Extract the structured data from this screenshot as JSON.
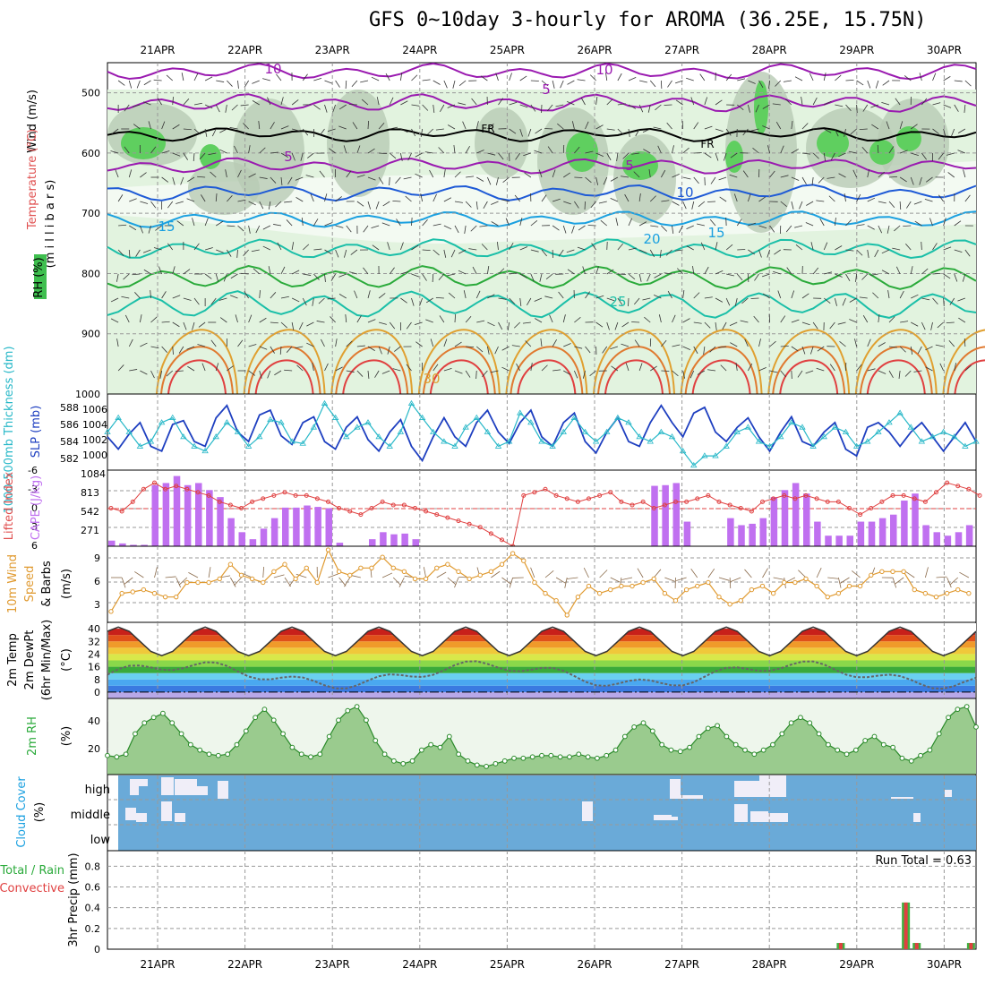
{
  "title": "GFS 0~10day 3-hourly for AROMA (36.25E, 15.75N)",
  "dates": [
    "21APR",
    "22APR",
    "23APR",
    "24APR",
    "25APR",
    "26APR",
    "27APR",
    "28APR",
    "29APR",
    "30APR"
  ],
  "colors": {
    "temp_labels": "#e05050",
    "purple": "#9a1ab0",
    "blue_dark": "#1e5ad6",
    "blue": "#1aa0e0",
    "teal": "#1abfa8",
    "green": "#2aaa3a",
    "orange": "#e0a030",
    "red": "#e04040",
    "slp": "#1e3fc0",
    "thick": "#28b8c8",
    "cape": "#c070f0",
    "wind": "#e09a30",
    "rh": "#4aa84a",
    "cloud": "#6aaad8"
  },
  "panels": {
    "upper": {
      "axis_label_wind": "Wind (m/s)",
      "axis_label_temp": "Temperature (°C)",
      "axis_label_rh": "RH (%)",
      "axis_label_pressure": "(m i l l i b a r s)",
      "yticks": [
        "500",
        "600",
        "700",
        "800",
        "900",
        "1000"
      ],
      "contour_labels": [
        {
          "text": "10",
          "color": "purple"
        },
        {
          "text": "5",
          "color": "purple"
        },
        {
          "text": "10",
          "color": "purple"
        },
        {
          "text": "5",
          "color": "purple"
        },
        {
          "text": "5",
          "color": "purple"
        },
        {
          "text": "10",
          "color": "blue_dark"
        },
        {
          "text": "15",
          "color": "blue"
        },
        {
          "text": "20",
          "color": "blue"
        },
        {
          "text": "15",
          "color": "blue"
        },
        {
          "text": "25",
          "color": "teal"
        },
        {
          "text": "30",
          "color": "orange"
        },
        {
          "text": "FR",
          "color": "black"
        },
        {
          "text": "FR",
          "color": "black"
        }
      ]
    },
    "slp": {
      "label_thick": "1000-500mb Thickness (dm)",
      "label_slp": "SLP (mb)",
      "yticks_left": [
        "588",
        "586",
        "584",
        "582"
      ],
      "yticks_right": [
        "1006",
        "1004",
        "1002",
        "1000"
      ]
    },
    "cape": {
      "label_li": "Lifted Index",
      "label_cape": "CAPE (J/kg)",
      "yticks_left": [
        "-6",
        "-3",
        "0",
        "3",
        "6"
      ],
      "yticks_right": [
        "1084",
        "813",
        "542",
        "271"
      ]
    },
    "wind10": {
      "label_a": "10m Wind",
      "label_b": "Speed",
      "label_c": "& Barbs",
      "label_unit": "(m/s)",
      "yticks": [
        "9",
        "6",
        "3"
      ]
    },
    "temp2m": {
      "label_a": "2m Temp",
      "label_b": "2m DewPt",
      "label_c": "(6hr Min/Max)",
      "label_unit": "(°C)",
      "yticks": [
        "40",
        "32",
        "24",
        "16",
        "8",
        "0"
      ]
    },
    "rh2m": {
      "label_a": "2m RH",
      "label_unit": "(%)",
      "yticks": [
        "40",
        "20"
      ]
    },
    "cloud": {
      "label_a": "Cloud Cover",
      "label_unit": "(%)",
      "levels": [
        "high",
        "middle",
        "low"
      ]
    },
    "precip": {
      "label_a": "Total / Rain",
      "label_b": "Convective",
      "label_c": "3hr Precip (mm)",
      "run_total": "Run Total = 0.63",
      "yticks": [
        "0.8",
        "0.6",
        "0.4",
        "0.2",
        "0"
      ]
    }
  },
  "chart_data": [
    {
      "panel": "slp",
      "type": "line",
      "series": [
        {
          "values": [
            1002.5,
            1001.2,
            1002.8,
            1004.0,
            1001.5,
            1001.0,
            1003.8,
            1004.2,
            1002.0,
            1001.5,
            1004.5,
            1005.8,
            1003.0,
            1002.0,
            1004.8,
            1005.3,
            1002.6,
            1001.7,
            1004.0,
            1004.6,
            1002.0,
            1001.2,
            1003.5,
            1004.6,
            1002.2,
            1001.0,
            1003.0,
            1004.3,
            1001.5,
            1000.0,
            1002.5,
            1004.5,
            1002.5,
            1001.5,
            1004.0,
            1005.3,
            1003.0,
            1001.8,
            1004.0,
            1005.3,
            1002.5,
            1001.5,
            1004.0,
            1005.0,
            1002.0,
            1000.8,
            1003.0,
            1004.5,
            1002.0,
            1001.5,
            1004.0,
            1005.8,
            1004.0,
            1002.5,
            1005.0,
            1005.6,
            1003.0,
            1002.0,
            1003.5,
            1004.5,
            1002.5,
            1001.0,
            1003.0,
            1004.6,
            1002.0,
            1001.5,
            1003.0,
            1004.0,
            1001.2,
            1000.5,
            1003.5,
            1004.0,
            1003.0,
            1001.5,
            1003.0,
            1004.0,
            1002.5,
            1001.0,
            1002.5,
            1004.0,
            1002.0
          ]
        },
        {
          "values": [
            1003.0,
            1004.5,
            1003.0,
            1001.5,
            1002.0,
            1004.0,
            1004.5,
            1002.5,
            1001.5,
            1001.0,
            1002.5,
            1004.0,
            1003.0,
            1001.5,
            1002.5,
            1004.3,
            1004.0,
            1002.0,
            1001.8,
            1003.5,
            1006.0,
            1004.5,
            1002.5,
            1003.5,
            1004.0,
            1002.5,
            1001.5,
            1003.0,
            1006.0,
            1004.5,
            1003.0,
            1002.0,
            1001.5,
            1003.5,
            1004.5,
            1003.0,
            1001.5,
            1002.0,
            1005.0,
            1004.0,
            1002.0,
            1001.5,
            1003.0,
            1004.5,
            1003.0,
            1002.0,
            1003.0,
            1004.5,
            1004.0,
            1002.5,
            1002.0,
            1003.0,
            1002.5,
            1001.0,
            999.5,
            1000.5,
            1000.5,
            1001.5,
            1003.0,
            1003.5,
            1002.0,
            1001.5,
            1002.5,
            1004.0,
            1003.5,
            1001.5,
            1002.5,
            1003.5,
            1003.0,
            1001.5,
            1002.0,
            1003.0,
            1004.0,
            1005.0,
            1003.5,
            1002.0,
            1002.5,
            1003.0,
            1002.5,
            1001.5,
            1002.0
          ]
        }
      ]
    },
    {
      "panel": "cape",
      "type": "bar",
      "categories_count": 80,
      "values": [
        80,
        40,
        20,
        20,
        870,
        900,
        1000,
        870,
        900,
        800,
        700,
        400,
        200,
        100,
        250,
        400,
        550,
        550,
        580,
        560,
        540,
        50,
        0,
        0,
        100,
        200,
        170,
        180,
        100,
        0,
        0,
        0,
        0,
        0,
        0,
        0,
        0,
        0,
        0,
        0,
        0,
        0,
        0,
        0,
        0,
        0,
        0,
        0,
        0,
        0,
        860,
        870,
        900,
        350,
        0,
        0,
        0,
        400,
        300,
        320,
        400,
        700,
        800,
        900,
        750,
        350,
        150,
        150,
        150,
        350,
        350,
        400,
        450,
        650,
        750,
        300,
        200,
        150,
        200,
        300
      ]
    },
    {
      "panel": "cape",
      "type": "line",
      "name": "Lifted Index",
      "values": [
        0,
        0.5,
        -1,
        -3,
        -4,
        -3,
        -3.5,
        -3,
        -2.5,
        -2,
        -1,
        -0.5,
        0,
        -1,
        -1.5,
        -2,
        -2.5,
        -2,
        -2,
        -1.5,
        -1,
        0,
        0.5,
        1,
        0,
        -1,
        -0.5,
        -0.5,
        0,
        0.5,
        1,
        1.5,
        2,
        2.5,
        3,
        4,
        5,
        6,
        -2,
        -2.5,
        -3,
        -2,
        -1.5,
        -1,
        -1.5,
        -2,
        -2.5,
        -1,
        -0.5,
        -1,
        0,
        -0.5,
        -1,
        -1,
        -1.5,
        -2,
        -1,
        -0.5,
        0,
        0.5,
        -1,
        -1.5,
        -2,
        -1.5,
        -2,
        -1.5,
        -1,
        -1,
        0,
        1,
        0,
        -1,
        -2,
        -2,
        -1.5,
        -1,
        -2.5,
        -4,
        -3.5,
        -3,
        -2
      ]
    },
    {
      "panel": "wind10",
      "type": "line",
      "name": "10m Wind Speed",
      "values": [
        1.5,
        4,
        4.2,
        4.5,
        4,
        3.5,
        3.5,
        5.5,
        5.5,
        5.5,
        6,
        8,
        6.5,
        6,
        5.5,
        7,
        8,
        6,
        7.5,
        5.5,
        10,
        7,
        6.5,
        7.5,
        7.5,
        9,
        7.5,
        7,
        6,
        6,
        7.5,
        8,
        7,
        6,
        6.5,
        7,
        8,
        9.5,
        8.5,
        5.5,
        4,
        3,
        1,
        3.5,
        5,
        4,
        4.5,
        5,
        5,
        5.5,
        6,
        4,
        3,
        4.5,
        5,
        5.5,
        3.5,
        2.5,
        3,
        4.5,
        5,
        4,
        5.5,
        5.5,
        6,
        5,
        3.5,
        4,
        5,
        5,
        6.5,
        7,
        7,
        7,
        4.5,
        4,
        3.5,
        4,
        4.5,
        4
      ]
    },
    {
      "panel": "rh2m",
      "type": "line",
      "name": "2m RH",
      "values": [
        14,
        13,
        15,
        30,
        38,
        42,
        45,
        38,
        30,
        22,
        18,
        15,
        14,
        15,
        22,
        32,
        42,
        48,
        40,
        30,
        20,
        15,
        13,
        15,
        28,
        40,
        47,
        50,
        40,
        25,
        15,
        10,
        8,
        10,
        18,
        22,
        20,
        28,
        15,
        10,
        7,
        6,
        8,
        10,
        12,
        12,
        13,
        14,
        14,
        13,
        13,
        15,
        13,
        12,
        14,
        18,
        28,
        35,
        38,
        32,
        22,
        18,
        17,
        20,
        28,
        34,
        36,
        28,
        22,
        18,
        15,
        18,
        22,
        30,
        38,
        42,
        38,
        30,
        22,
        18,
        15,
        18,
        25,
        28,
        22,
        20,
        12,
        10,
        14,
        18,
        30,
        42,
        48,
        50,
        35
      ]
    },
    {
      "panel": "precip",
      "type": "bar",
      "name": "3hr Precip",
      "categories_count": 80,
      "values": [
        0,
        0,
        0,
        0,
        0,
        0,
        0,
        0,
        0,
        0,
        0,
        0,
        0,
        0,
        0,
        0,
        0,
        0,
        0,
        0,
        0,
        0,
        0,
        0,
        0,
        0,
        0,
        0,
        0,
        0,
        0,
        0,
        0,
        0,
        0,
        0,
        0,
        0,
        0,
        0,
        0,
        0,
        0,
        0,
        0,
        0,
        0,
        0,
        0,
        0,
        0,
        0,
        0,
        0,
        0,
        0,
        0,
        0,
        0,
        0,
        0,
        0,
        0,
        0,
        0,
        0,
        0,
        0.06,
        0,
        0,
        0,
        0,
        0,
        0.45,
        0.06,
        0,
        0,
        0,
        0,
        0.06,
        0
      ]
    }
  ]
}
